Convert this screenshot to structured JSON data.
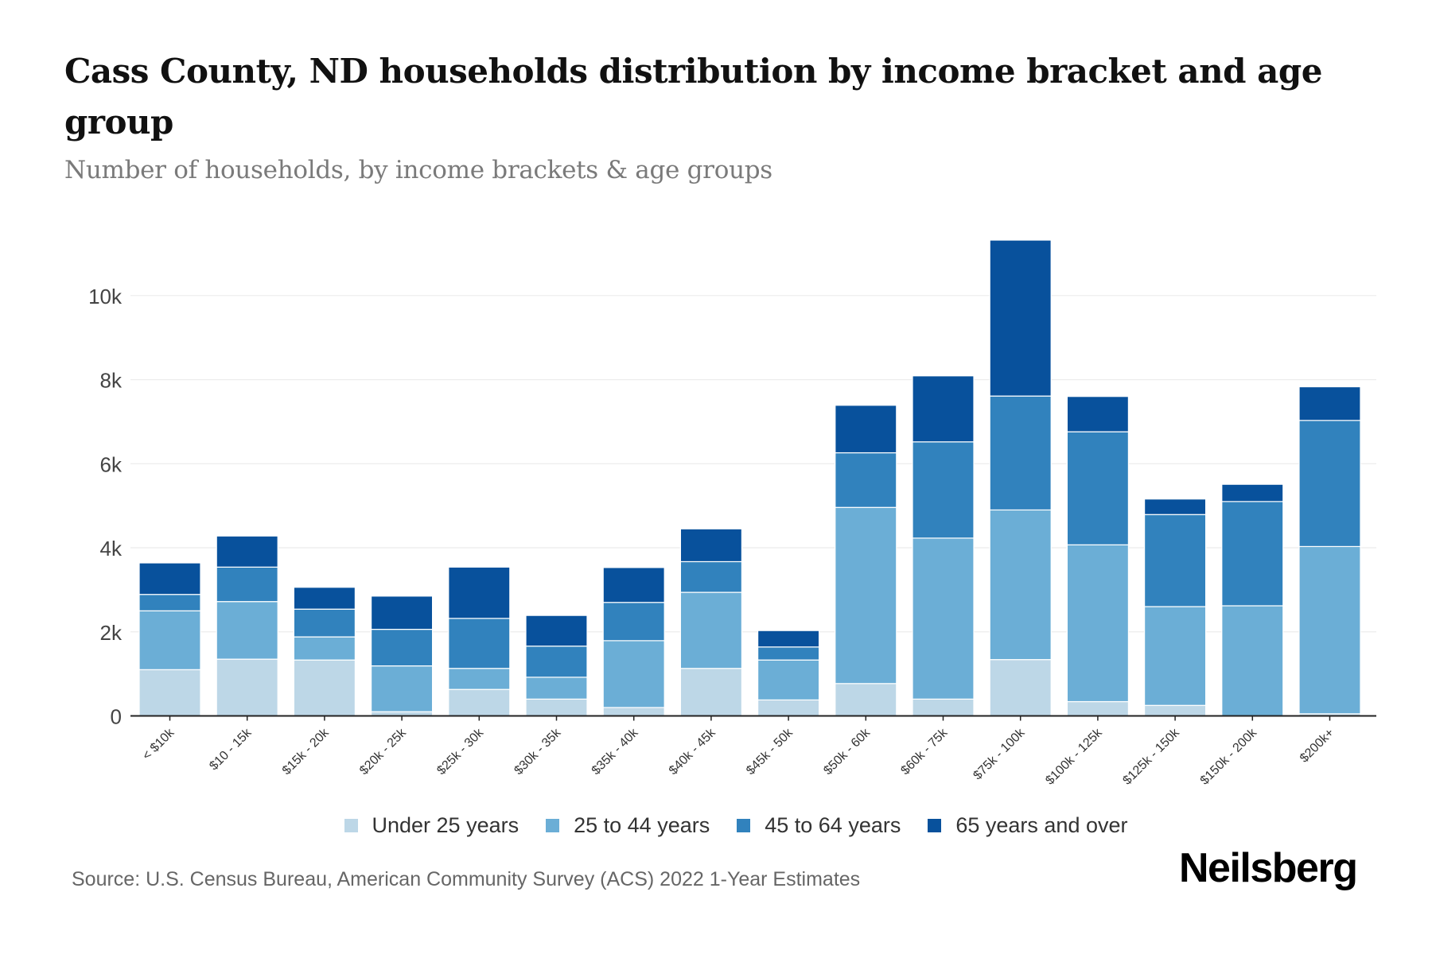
{
  "header": {
    "title": "Cass County, ND households distribution by income bracket and age group",
    "subtitle": "Number of households, by income brackets & age groups"
  },
  "footer": {
    "source": "Source: U.S. Census Bureau, American Community Survey (ACS) 2022 1-Year Estimates",
    "logo": "Neilsberg"
  },
  "chart_data": {
    "type": "bar",
    "stacked": true,
    "title": "Cass County, ND households distribution by income bracket and age group",
    "subtitle": "Number of households, by income brackets & age groups",
    "xlabel": "",
    "ylabel": "",
    "ylim": [
      0,
      11500
    ],
    "yticks": [
      0,
      2000,
      4000,
      6000,
      8000,
      10000
    ],
    "ytick_labels": [
      "0",
      "2k",
      "4k",
      "6k",
      "8k",
      "10k"
    ],
    "grid": true,
    "legend_position": "bottom",
    "categories": [
      "< $10k",
      "$10 - 15k",
      "$15k - 20k",
      "$20k - 25k",
      "$25k - 30k",
      "$30k - 35k",
      "$35k - 40k",
      "$40k - 45k",
      "$45k - 50k",
      "$50k - 60k",
      "$60k - 75k",
      "$75k - 100k",
      "$100k - 125k",
      "$125k - 150k",
      "$150k - 200k",
      "$200k+"
    ],
    "series": [
      {
        "name": "Under 25 years",
        "color": "#bdd7e7",
        "values": [
          1100,
          1350,
          1330,
          100,
          630,
          400,
          200,
          1130,
          380,
          770,
          400,
          1340,
          340,
          250,
          0,
          50
        ]
      },
      {
        "name": "25 to 44 years",
        "color": "#6baed6",
        "values": [
          1400,
          1370,
          550,
          1090,
          500,
          520,
          1590,
          1810,
          950,
          4190,
          3830,
          3560,
          3730,
          2350,
          2620,
          3980
        ]
      },
      {
        "name": "45 to 64 years",
        "color": "#3182bd",
        "values": [
          390,
          820,
          660,
          870,
          1190,
          740,
          910,
          730,
          310,
          1300,
          2290,
          2710,
          2690,
          2190,
          2480,
          3000
        ]
      },
      {
        "name": "65 years and over",
        "color": "#08519c",
        "values": [
          750,
          740,
          520,
          790,
          1220,
          730,
          830,
          780,
          390,
          1130,
          1570,
          3710,
          840,
          370,
          410,
          800
        ]
      }
    ]
  }
}
